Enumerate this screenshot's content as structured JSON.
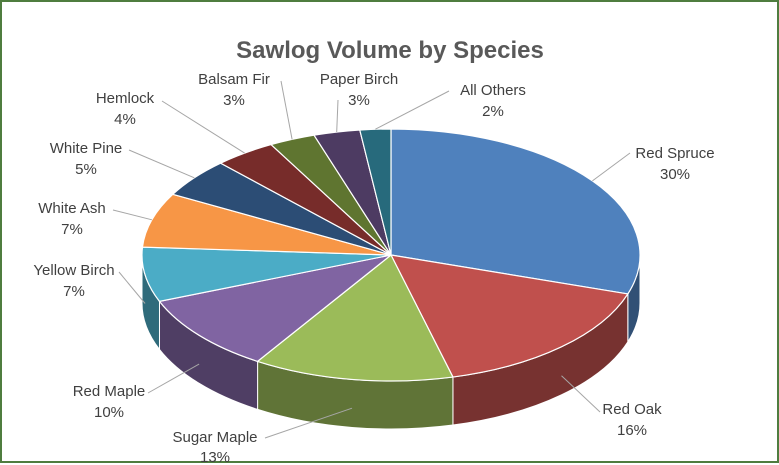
{
  "chart_data": {
    "type": "pie",
    "title": "Sawlog Volume by Species",
    "slices": [
      {
        "label": "Red Spruce",
        "value": 30,
        "display": "30%",
        "color": "#4f81bd"
      },
      {
        "label": "Red Oak",
        "value": 16,
        "display": "16%",
        "color": "#c0504d"
      },
      {
        "label": "Sugar Maple",
        "value": 13,
        "display": "13%",
        "color": "#9bbb59"
      },
      {
        "label": "Red Maple",
        "value": 10,
        "display": "10%",
        "color": "#8064a2"
      },
      {
        "label": "Yellow Birch",
        "value": 7,
        "display": "7%",
        "color": "#4bacc6"
      },
      {
        "label": "White Ash",
        "value": 7,
        "display": "7%",
        "color": "#f79646"
      },
      {
        "label": "White Pine",
        "value": 5,
        "display": "5%",
        "color": "#2c4d75"
      },
      {
        "label": "Hemlock",
        "value": 4,
        "display": "4%",
        "color": "#772c2a"
      },
      {
        "label": "Balsam Fir",
        "value": 3,
        "display": "3%",
        "color": "#5f7530"
      },
      {
        "label": "Paper Birch",
        "value": 3,
        "display": "3%",
        "color": "#4d3b62"
      },
      {
        "label": "All Others",
        "value": 2,
        "display": "2%",
        "color": "#276a7c"
      }
    ]
  }
}
